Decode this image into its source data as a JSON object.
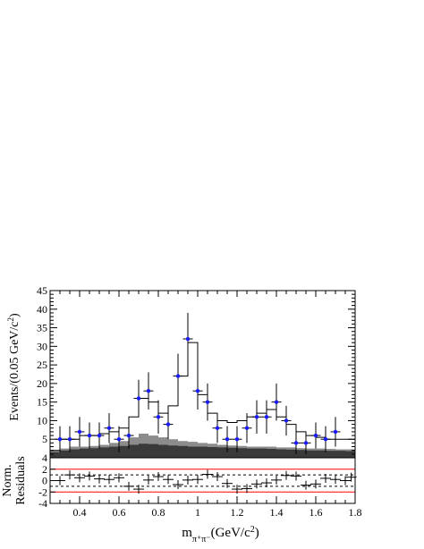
{
  "chart_data": [
    {
      "type": "scatter",
      "panel": "main",
      "ylabel_main": "Events/(0.05 GeV/c",
      "ylabel_sup": "2",
      "ylabel_tail": ")",
      "xlim": [
        0.25,
        1.8
      ],
      "ylim": [
        0,
        45
      ],
      "ytick_values": [
        5,
        10,
        15,
        20,
        25,
        30,
        35,
        40,
        45
      ],
      "ytick_labels": [
        "5",
        "10",
        "15",
        "20",
        "25",
        "30",
        "35",
        "40",
        "45"
      ],
      "data_points": [
        {
          "x": 0.3,
          "y": 5,
          "yerr": 3.5
        },
        {
          "x": 0.35,
          "y": 5,
          "yerr": 3.5
        },
        {
          "x": 0.4,
          "y": 7,
          "yerr": 4
        },
        {
          "x": 0.45,
          "y": 6,
          "yerr": 3.5
        },
        {
          "x": 0.5,
          "y": 6,
          "yerr": 3.5
        },
        {
          "x": 0.55,
          "y": 8,
          "yerr": 4
        },
        {
          "x": 0.6,
          "y": 5,
          "yerr": 3.5
        },
        {
          "x": 0.65,
          "y": 6,
          "yerr": 3.5
        },
        {
          "x": 0.7,
          "y": 16,
          "yerr": 5
        },
        {
          "x": 0.75,
          "y": 18,
          "yerr": 5
        },
        {
          "x": 0.8,
          "y": 11,
          "yerr": 4.5
        },
        {
          "x": 0.85,
          "y": 9,
          "yerr": 4
        },
        {
          "x": 0.9,
          "y": 22,
          "yerr": 6
        },
        {
          "x": 0.95,
          "y": 32,
          "yerr": 7
        },
        {
          "x": 1.0,
          "y": 18,
          "yerr": 5
        },
        {
          "x": 1.05,
          "y": 15,
          "yerr": 5
        },
        {
          "x": 1.1,
          "y": 8,
          "yerr": 4
        },
        {
          "x": 1.15,
          "y": 5,
          "yerr": 3.5
        },
        {
          "x": 1.2,
          "y": 5,
          "yerr": 3.5
        },
        {
          "x": 1.25,
          "y": 8,
          "yerr": 4
        },
        {
          "x": 1.3,
          "y": 11,
          "yerr": 4.5
        },
        {
          "x": 1.35,
          "y": 11,
          "yerr": 4.5
        },
        {
          "x": 1.4,
          "y": 15,
          "yerr": 5
        },
        {
          "x": 1.45,
          "y": 10,
          "yerr": 4
        },
        {
          "x": 1.5,
          "y": 4,
          "yerr": 3
        },
        {
          "x": 1.55,
          "y": 4,
          "yerr": 3
        },
        {
          "x": 1.6,
          "y": 6,
          "yerr": 3.5
        },
        {
          "x": 1.65,
          "y": 5,
          "yerr": 3.5
        },
        {
          "x": 1.7,
          "y": 7,
          "yerr": 4
        }
      ],
      "fit_histogram": [
        {
          "x0": 0.25,
          "x1": 0.3,
          "y": 2
        },
        {
          "x0": 0.3,
          "x1": 0.35,
          "y": 5
        },
        {
          "x0": 0.35,
          "x1": 0.4,
          "y": 5
        },
        {
          "x0": 0.4,
          "x1": 0.45,
          "y": 6
        },
        {
          "x0": 0.45,
          "x1": 0.5,
          "y": 6
        },
        {
          "x0": 0.5,
          "x1": 0.55,
          "y": 6.5
        },
        {
          "x0": 0.55,
          "x1": 0.6,
          "y": 7
        },
        {
          "x0": 0.6,
          "x1": 0.65,
          "y": 8
        },
        {
          "x0": 0.65,
          "x1": 0.7,
          "y": 11
        },
        {
          "x0": 0.7,
          "x1": 0.75,
          "y": 16
        },
        {
          "x0": 0.75,
          "x1": 0.8,
          "y": 15
        },
        {
          "x0": 0.8,
          "x1": 0.85,
          "y": 12
        },
        {
          "x0": 0.85,
          "x1": 0.9,
          "y": 14
        },
        {
          "x0": 0.9,
          "x1": 0.95,
          "y": 22
        },
        {
          "x0": 0.95,
          "x1": 1.0,
          "y": 31
        },
        {
          "x0": 1.0,
          "x1": 1.05,
          "y": 17
        },
        {
          "x0": 1.05,
          "x1": 1.1,
          "y": 12
        },
        {
          "x0": 1.1,
          "x1": 1.15,
          "y": 10
        },
        {
          "x0": 1.15,
          "x1": 1.2,
          "y": 9.5
        },
        {
          "x0": 1.2,
          "x1": 1.25,
          "y": 10
        },
        {
          "x0": 1.25,
          "x1": 1.3,
          "y": 11
        },
        {
          "x0": 1.3,
          "x1": 1.35,
          "y": 12
        },
        {
          "x0": 1.35,
          "x1": 1.4,
          "y": 13
        },
        {
          "x0": 1.4,
          "x1": 1.45,
          "y": 11
        },
        {
          "x0": 1.45,
          "x1": 1.5,
          "y": 9
        },
        {
          "x0": 1.5,
          "x1": 1.55,
          "y": 7
        },
        {
          "x0": 1.55,
          "x1": 1.6,
          "y": 6
        },
        {
          "x0": 1.6,
          "x1": 1.65,
          "y": 5.5
        },
        {
          "x0": 1.65,
          "x1": 1.7,
          "y": 5
        },
        {
          "x0": 1.7,
          "x1": 1.75,
          "y": 5
        },
        {
          "x0": 1.75,
          "x1": 1.8,
          "y": 5
        }
      ],
      "background_light": [
        {
          "x0": 0.25,
          "x1": 0.3,
          "y": 2
        },
        {
          "x0": 0.3,
          "x1": 0.35,
          "y": 2.5
        },
        {
          "x0": 0.35,
          "x1": 0.4,
          "y": 3
        },
        {
          "x0": 0.4,
          "x1": 0.45,
          "y": 3
        },
        {
          "x0": 0.45,
          "x1": 0.5,
          "y": 3.2
        },
        {
          "x0": 0.5,
          "x1": 0.55,
          "y": 3.5
        },
        {
          "x0": 0.55,
          "x1": 0.6,
          "y": 4
        },
        {
          "x0": 0.6,
          "x1": 0.65,
          "y": 4.5
        },
        {
          "x0": 0.65,
          "x1": 0.7,
          "y": 5.5
        },
        {
          "x0": 0.7,
          "x1": 0.75,
          "y": 6.5
        },
        {
          "x0": 0.75,
          "x1": 0.8,
          "y": 6
        },
        {
          "x0": 0.8,
          "x1": 0.85,
          "y": 5.5
        },
        {
          "x0": 0.85,
          "x1": 0.9,
          "y": 5
        },
        {
          "x0": 0.9,
          "x1": 0.95,
          "y": 4.5
        },
        {
          "x0": 0.95,
          "x1": 1.0,
          "y": 4.3
        },
        {
          "x0": 1.0,
          "x1": 1.05,
          "y": 4
        },
        {
          "x0": 1.05,
          "x1": 1.1,
          "y": 3.8
        },
        {
          "x0": 1.1,
          "x1": 1.15,
          "y": 3.5
        },
        {
          "x0": 1.15,
          "x1": 1.2,
          "y": 3.3
        },
        {
          "x0": 1.2,
          "x1": 1.25,
          "y": 3.2
        },
        {
          "x0": 1.25,
          "x1": 1.3,
          "y": 3
        },
        {
          "x0": 1.3,
          "x1": 1.35,
          "y": 3
        },
        {
          "x0": 1.35,
          "x1": 1.4,
          "y": 3
        },
        {
          "x0": 1.4,
          "x1": 1.45,
          "y": 2.8
        },
        {
          "x0": 1.45,
          "x1": 1.5,
          "y": 2.8
        },
        {
          "x0": 1.5,
          "x1": 1.55,
          "y": 2.6
        },
        {
          "x0": 1.55,
          "x1": 1.6,
          "y": 2.5
        },
        {
          "x0": 1.6,
          "x1": 1.65,
          "y": 2.5
        },
        {
          "x0": 1.65,
          "x1": 1.7,
          "y": 2.4
        },
        {
          "x0": 1.7,
          "x1": 1.75,
          "y": 2.3
        },
        {
          "x0": 1.75,
          "x1": 1.8,
          "y": 2.3
        }
      ],
      "background_dark": [
        {
          "x0": 0.25,
          "x1": 0.3,
          "y": 1.5
        },
        {
          "x0": 0.3,
          "x1": 0.35,
          "y": 2
        },
        {
          "x0": 0.35,
          "x1": 0.4,
          "y": 2.3
        },
        {
          "x0": 0.4,
          "x1": 0.45,
          "y": 2.5
        },
        {
          "x0": 0.45,
          "x1": 0.5,
          "y": 2.6
        },
        {
          "x0": 0.5,
          "x1": 0.55,
          "y": 2.8
        },
        {
          "x0": 0.55,
          "x1": 0.6,
          "y": 3
        },
        {
          "x0": 0.6,
          "x1": 0.65,
          "y": 3.2
        },
        {
          "x0": 0.65,
          "x1": 0.7,
          "y": 3.5
        },
        {
          "x0": 0.7,
          "x1": 0.75,
          "y": 3.8
        },
        {
          "x0": 0.75,
          "x1": 0.8,
          "y": 3.7
        },
        {
          "x0": 0.8,
          "x1": 0.85,
          "y": 3.5
        },
        {
          "x0": 0.85,
          "x1": 0.9,
          "y": 3.3
        },
        {
          "x0": 0.9,
          "x1": 0.95,
          "y": 3.2
        },
        {
          "x0": 0.95,
          "x1": 1.0,
          "y": 3
        },
        {
          "x0": 1.0,
          "x1": 1.05,
          "y": 3
        },
        {
          "x0": 1.05,
          "x1": 1.1,
          "y": 2.9
        },
        {
          "x0": 1.1,
          "x1": 1.15,
          "y": 2.8
        },
        {
          "x0": 1.15,
          "x1": 1.2,
          "y": 2.7
        },
        {
          "x0": 1.2,
          "x1": 1.25,
          "y": 2.6
        },
        {
          "x0": 1.25,
          "x1": 1.3,
          "y": 2.5
        },
        {
          "x0": 1.3,
          "x1": 1.35,
          "y": 2.5
        },
        {
          "x0": 1.35,
          "x1": 1.4,
          "y": 2.4
        },
        {
          "x0": 1.4,
          "x1": 1.45,
          "y": 2.3
        },
        {
          "x0": 1.45,
          "x1": 1.5,
          "y": 2.2
        },
        {
          "x0": 1.5,
          "x1": 1.55,
          "y": 2.1
        },
        {
          "x0": 1.55,
          "x1": 1.6,
          "y": 2
        },
        {
          "x0": 1.6,
          "x1": 1.65,
          "y": 2
        },
        {
          "x0": 1.65,
          "x1": 1.7,
          "y": 1.9
        },
        {
          "x0": 1.7,
          "x1": 1.75,
          "y": 1.9
        },
        {
          "x0": 1.75,
          "x1": 1.8,
          "y": 1.8
        }
      ],
      "colors": {
        "data_points": "#1a1aff",
        "fit_line": "#000000",
        "bg_light": "#8c8c8c",
        "bg_dark": "#3a3a3a"
      }
    },
    {
      "type": "scatter",
      "panel": "residuals",
      "ylabel_line1": "Norm.",
      "ylabel_line2": "Residuals",
      "xlabel_main": "m",
      "xlabel_sub": "π⁺π⁻",
      "xlabel_unit": "(GeV/c",
      "xlabel_sup": "2",
      "xlabel_tail": ")",
      "xlim": [
        0.25,
        1.8
      ],
      "ylim": [
        -4,
        4
      ],
      "ytick_values": [
        -4,
        -2,
        0,
        2,
        4
      ],
      "ytick_labels": [
        "-4",
        "-2",
        "0",
        "2",
        "4"
      ],
      "xtick_values": [
        0.4,
        0.6,
        0.8,
        1.0,
        1.2,
        1.4,
        1.6,
        1.8
      ],
      "xtick_labels": [
        "0.4",
        "0.6",
        "0.8",
        "1",
        "1.2",
        "1.4",
        "1.6",
        "1.8"
      ],
      "reference_lines": [
        {
          "y": 1,
          "style": "dashed",
          "color": "#000000"
        },
        {
          "y": -1,
          "style": "dashed",
          "color": "#000000"
        },
        {
          "y": 2,
          "style": "solid",
          "color": "#ff0000"
        },
        {
          "y": -2,
          "style": "solid",
          "color": "#ff0000"
        }
      ],
      "residuals": [
        {
          "x": 0.3,
          "y": 0.0
        },
        {
          "x": 0.35,
          "y": 1.0
        },
        {
          "x": 0.4,
          "y": 0.5
        },
        {
          "x": 0.45,
          "y": 0.8
        },
        {
          "x": 0.5,
          "y": 0.3
        },
        {
          "x": 0.55,
          "y": 0.2
        },
        {
          "x": 0.6,
          "y": 0.5
        },
        {
          "x": 0.65,
          "y": -1.0
        },
        {
          "x": 0.7,
          "y": -1.5
        },
        {
          "x": 0.75,
          "y": 0.1
        },
        {
          "x": 0.8,
          "y": 0.7
        },
        {
          "x": 0.85,
          "y": 0.2
        },
        {
          "x": 0.9,
          "y": -0.7
        },
        {
          "x": 0.95,
          "y": 0.1
        },
        {
          "x": 1.0,
          "y": 0.2
        },
        {
          "x": 1.05,
          "y": 1.1
        },
        {
          "x": 1.1,
          "y": 0.7
        },
        {
          "x": 1.15,
          "y": -0.5
        },
        {
          "x": 1.2,
          "y": -1.5
        },
        {
          "x": 1.25,
          "y": -1.4
        },
        {
          "x": 1.3,
          "y": -0.6
        },
        {
          "x": 1.35,
          "y": -0.4
        },
        {
          "x": 1.4,
          "y": 0.1
        },
        {
          "x": 1.45,
          "y": 0.9
        },
        {
          "x": 1.5,
          "y": 0.8
        },
        {
          "x": 1.55,
          "y": -0.8
        },
        {
          "x": 1.6,
          "y": -0.6
        },
        {
          "x": 1.65,
          "y": 0.4
        },
        {
          "x": 1.7,
          "y": 0.2
        },
        {
          "x": 1.75,
          "y": 0.0
        },
        {
          "x": 1.78,
          "y": 0.6
        }
      ]
    }
  ]
}
